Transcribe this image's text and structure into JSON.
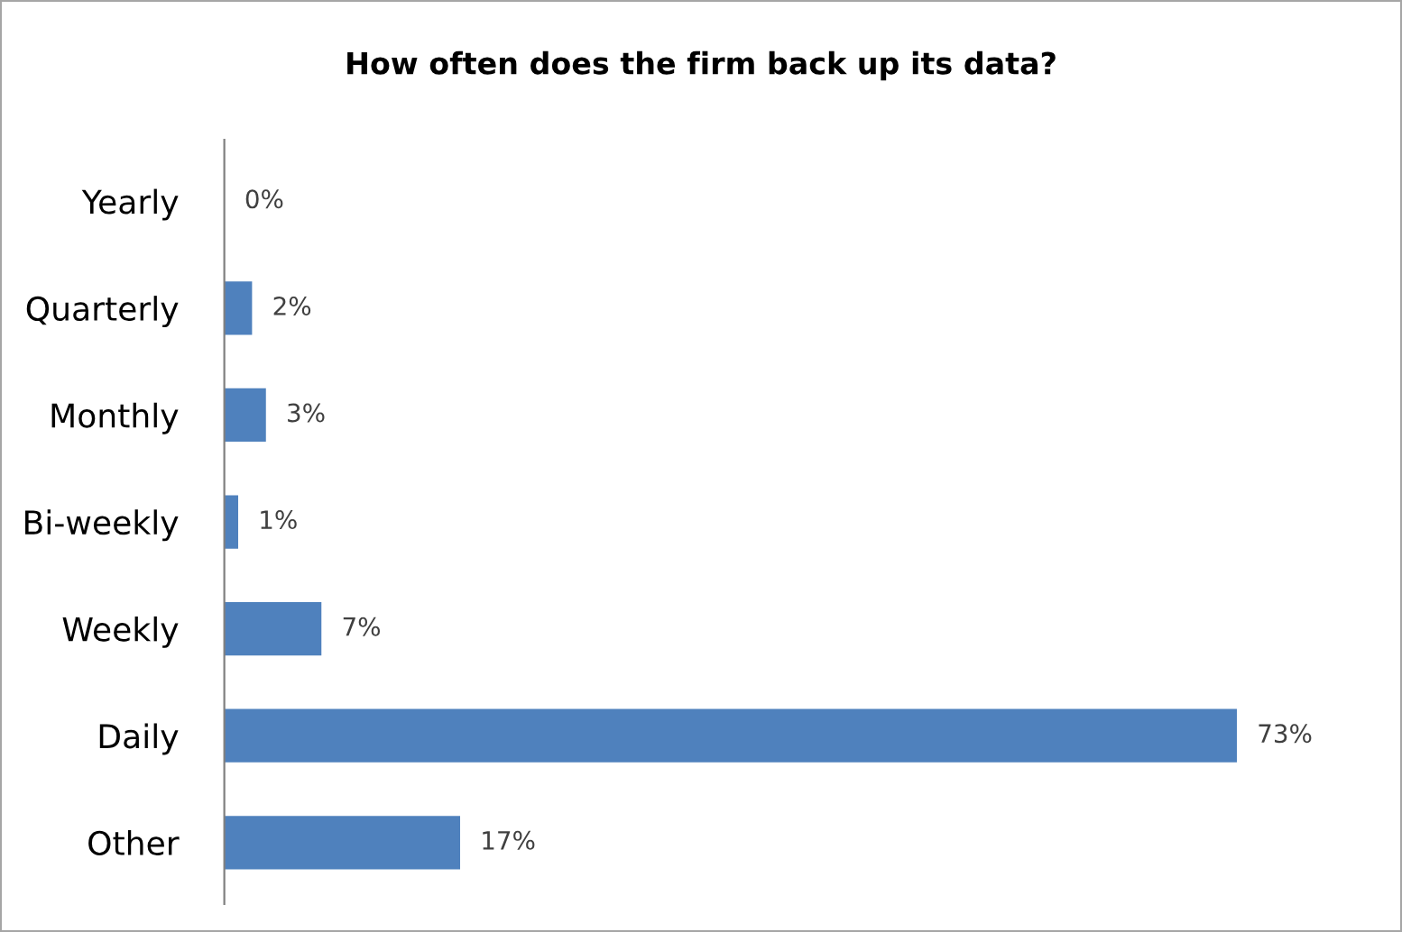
{
  "chart_data": {
    "type": "bar",
    "orientation": "horizontal",
    "title": "How often does the firm back up its data?",
    "categories": [
      "Yearly",
      "Quarterly",
      "Monthly",
      "Bi-weekly",
      "Weekly",
      "Daily",
      "Other"
    ],
    "values": [
      0,
      2,
      3,
      1,
      7,
      73,
      17
    ],
    "value_labels": [
      "0%",
      "2%",
      "3%",
      "1%",
      "7%",
      "73%",
      "17%"
    ],
    "color": "#4f81bd",
    "grid": false,
    "legend": false
  }
}
